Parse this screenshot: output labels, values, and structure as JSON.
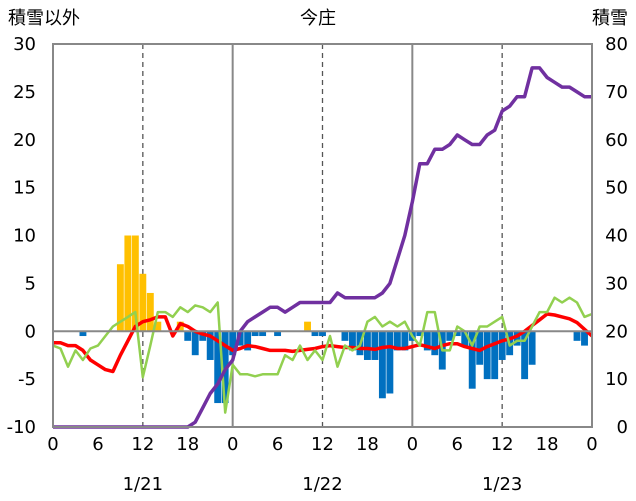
{
  "chart_data": {
    "type": "bar+line",
    "title": "今庄",
    "left_axis_label": "積雪以外",
    "right_axis_label": "積雪",
    "left_ylim": [
      -10,
      30
    ],
    "right_ylim": [
      0,
      80
    ],
    "left_ticks": [
      "30",
      "25",
      "20",
      "15",
      "10",
      "5",
      "0",
      "-5",
      "-10"
    ],
    "right_ticks": [
      "80",
      "70",
      "60",
      "50",
      "40",
      "30",
      "20",
      "10",
      "0"
    ],
    "x_tick_labels": [
      "0",
      "6",
      "12",
      "18",
      "0",
      "6",
      "12",
      "18",
      "0",
      "6",
      "12",
      "18",
      "0"
    ],
    "date_labels": [
      "1/21",
      "1/22",
      "1/23"
    ],
    "x_range_hours": [
      0,
      72
    ],
    "grid": "dashed vertical at 6-hour ticks 12 and solid at day boundaries",
    "colors": {
      "precip_positive": "#ffc000",
      "precip_negative": "#0070c0",
      "temperature": "#ff0000",
      "series_green": "#92d050",
      "snow_depth": "#7030a0"
    },
    "bars": {
      "axis": "left",
      "x_hours": [
        4,
        9,
        10,
        11,
        12,
        13,
        14,
        17,
        18,
        19,
        20,
        21,
        22,
        23,
        24,
        25,
        26,
        27,
        28,
        30,
        34,
        35,
        36,
        39,
        40,
        41,
        42,
        43,
        44,
        45,
        46,
        47,
        48,
        49,
        50,
        51,
        52,
        53,
        54,
        55,
        56,
        57,
        58,
        59,
        60,
        61,
        62,
        63,
        64,
        70,
        71
      ],
      "values": [
        -0.5,
        7,
        10,
        10,
        6,
        4,
        1,
        1,
        -1,
        -2.5,
        -1,
        -3,
        -7.5,
        -7.5,
        -2.5,
        -1.5,
        -2,
        -0.5,
        -0.5,
        -0.5,
        1,
        -0.5,
        -0.5,
        -1,
        -2,
        -2.5,
        -3,
        -3,
        -7,
        -6.5,
        -2,
        -2,
        -1,
        -0.5,
        -2,
        -2.5,
        -4,
        -1,
        -0.5,
        -1.5,
        -6,
        -3.5,
        -5,
        -5,
        -3,
        -2.5,
        -1.5,
        -5,
        -3.5,
        -1,
        -1.5
      ]
    },
    "series": [
      {
        "name": "",
        "color": "#ff0000",
        "axis": "left",
        "x": [
          0,
          1,
          2,
          3,
          4,
          5,
          6,
          7,
          8,
          9,
          10,
          11,
          12,
          13,
          14,
          15,
          16,
          17,
          18,
          19,
          20,
          21,
          22,
          23,
          24,
          25,
          26,
          27,
          28,
          29,
          30,
          31,
          32,
          33,
          34,
          35,
          36,
          37,
          38,
          39,
          40,
          41,
          42,
          43,
          44,
          45,
          46,
          47,
          48,
          49,
          50,
          51,
          52,
          53,
          54,
          55,
          56,
          57,
          58,
          59,
          60,
          61,
          62,
          63,
          64,
          65,
          66,
          67,
          68,
          69,
          70,
          71,
          72
        ],
        "y": [
          -1.2,
          -1.2,
          -1.5,
          -1.5,
          -2,
          -3,
          -3.5,
          -4,
          -4.2,
          -2.5,
          -1,
          0.5,
          1,
          1.2,
          1.5,
          1.5,
          -0.5,
          0.8,
          0.5,
          0,
          -0.3,
          -0.5,
          -1,
          -1.5,
          -2,
          -1.8,
          -1.5,
          -1.6,
          -1.8,
          -2,
          -2,
          -2,
          -2.1,
          -2,
          -1.9,
          -1.8,
          -1.6,
          -1.5,
          -1.6,
          -1.7,
          -1.7,
          -1.8,
          -1.8,
          -1.9,
          -1.7,
          -1.6,
          -1.8,
          -1.8,
          -1.6,
          -1.4,
          -1.6,
          -1.8,
          -1.5,
          -1.3,
          -1.3,
          -1.6,
          -1.8,
          -2,
          -1.6,
          -1.3,
          -1,
          -0.8,
          -0.5,
          0,
          0.6,
          1.2,
          1.8,
          1.7,
          1.5,
          1.3,
          0.9,
          0.2,
          -0.5
        ]
      },
      {
        "name": "",
        "color": "#92d050",
        "axis": "left",
        "x": [
          0,
          1,
          2,
          3,
          4,
          5,
          6,
          7,
          8,
          9,
          10,
          11,
          12,
          13,
          14,
          15,
          16,
          17,
          18,
          19,
          20,
          21,
          22,
          23,
          24,
          25,
          26,
          27,
          28,
          29,
          30,
          31,
          32,
          33,
          34,
          35,
          36,
          37,
          38,
          39,
          40,
          41,
          42,
          43,
          44,
          45,
          46,
          47,
          48,
          49,
          50,
          51,
          52,
          53,
          54,
          55,
          56,
          57,
          58,
          59,
          60,
          61,
          62,
          63,
          64,
          65,
          66,
          67,
          68,
          69,
          70,
          71,
          72
        ],
        "y": [
          -1.5,
          -1.8,
          -3.7,
          -2.0,
          -3.0,
          -1.8,
          -1.5,
          -0.5,
          0.5,
          1.0,
          1.5,
          2.0,
          -4.8,
          -1.5,
          2.0,
          2.0,
          1.5,
          2.5,
          2.0,
          2.7,
          2.5,
          2.0,
          3.0,
          -8.5,
          -3.5,
          -4.5,
          -4.5,
          -4.7,
          -4.5,
          -4.5,
          -4.5,
          -2.5,
          -3.0,
          -1.5,
          -3.0,
          -2.0,
          -3.0,
          -0.5,
          -3.7,
          -1.5,
          -2.0,
          -1.5,
          1.0,
          1.5,
          0.5,
          1.0,
          0.5,
          1.0,
          -0.5,
          -1.5,
          2.0,
          2.0,
          -2.0,
          -2.0,
          0.5,
          0.0,
          -1.5,
          0.5,
          0.5,
          1.0,
          1.5,
          -1.5,
          -1.0,
          -1.0,
          0.5,
          2.0,
          2.0,
          3.5,
          3.0,
          3.5,
          3.0,
          1.5,
          1.8
        ]
      },
      {
        "name": "",
        "color": "#7030a0",
        "axis": "right",
        "x": [
          0,
          1,
          2,
          3,
          4,
          5,
          6,
          7,
          8,
          9,
          10,
          11,
          12,
          13,
          14,
          15,
          16,
          17,
          18,
          19,
          20,
          21,
          22,
          23,
          24,
          25,
          26,
          27,
          28,
          29,
          30,
          31,
          32,
          33,
          34,
          35,
          36,
          37,
          38,
          39,
          40,
          41,
          42,
          43,
          44,
          45,
          46,
          47,
          48,
          49,
          50,
          51,
          52,
          53,
          54,
          55,
          56,
          57,
          58,
          59,
          60,
          61,
          62,
          63,
          64,
          65,
          66,
          67,
          68,
          69,
          70,
          71,
          72
        ],
        "y": [
          0,
          0,
          0,
          0,
          0,
          0,
          0,
          0,
          0,
          0,
          0,
          0,
          0,
          0,
          0,
          0,
          0,
          0,
          0,
          1,
          4,
          7,
          9,
          12,
          14,
          20,
          22,
          23,
          24,
          25,
          25,
          24,
          25,
          26,
          26,
          26,
          26,
          26,
          28,
          27,
          27,
          27,
          27,
          27,
          28,
          30,
          35,
          40,
          47,
          55,
          55,
          58,
          58,
          59,
          61,
          60,
          59,
          59,
          61,
          62,
          66,
          67,
          69,
          69,
          75,
          75,
          73,
          72,
          71,
          71,
          70,
          69,
          69
        ]
      }
    ]
  }
}
